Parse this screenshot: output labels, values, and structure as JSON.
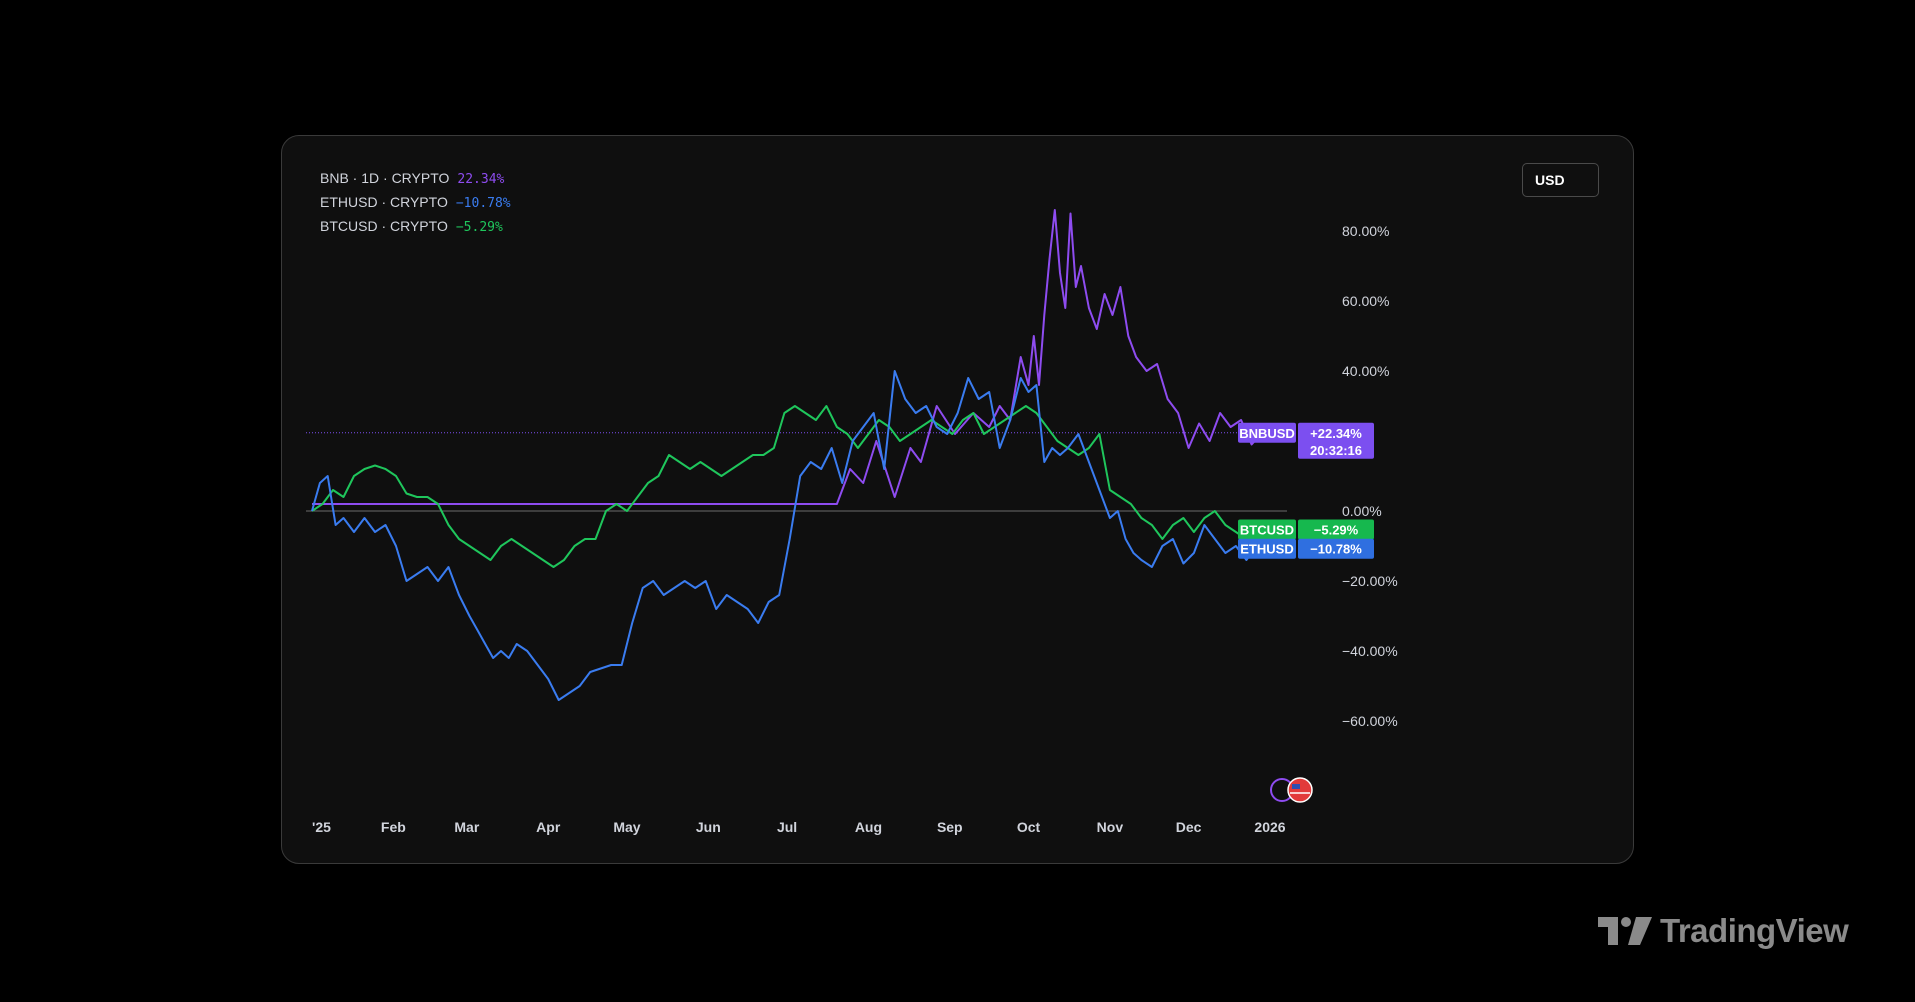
{
  "brand": {
    "name": "TradingView"
  },
  "currency_button": {
    "label": "USD"
  },
  "legend": [
    {
      "label": "BNB · 1D · CRYPTO",
      "value": "22.34%",
      "color": "#8e4cf0"
    },
    {
      "label": "ETHUSD · CRYPTO",
      "value": "−10.78%",
      "color": "#3a7cf0"
    },
    {
      "label": "BTCUSD · CRYPTO",
      "value": "−5.29%",
      "color": "#1fc65c"
    }
  ],
  "price_tags": [
    {
      "name": "BNBUSD",
      "value": "+22.34%",
      "extra": "20:32:16",
      "color": "#7c4ff0",
      "y": 22.34
    },
    {
      "name": "BTCUSD",
      "value": "−5.29%",
      "color": "#16b84e",
      "y": -5.29
    },
    {
      "name": "ETHUSD",
      "value": "−10.78%",
      "color": "#2f6fe0",
      "y": -10.78
    }
  ],
  "chart_data": {
    "type": "line",
    "title": "",
    "xlabel": "",
    "ylabel": "",
    "ylim": [
      -70,
      90
    ],
    "x_ticks": [
      "'25",
      "Feb",
      "Mar",
      "Apr",
      "May",
      "Jun",
      "Jul",
      "Aug",
      "Sep",
      "Oct",
      "Nov",
      "Dec",
      "2026"
    ],
    "x_tick_days": [
      0,
      31,
      59,
      90,
      120,
      151,
      181,
      212,
      243,
      273,
      304,
      334,
      365
    ],
    "y_ticks": [
      {
        "value": 80,
        "label": "80.00%"
      },
      {
        "value": 60,
        "label": "60.00%"
      },
      {
        "value": 40,
        "label": "40.00%"
      },
      {
        "value": 0,
        "label": "0.00%"
      },
      {
        "value": -20,
        "label": "−20.00%"
      },
      {
        "value": -40,
        "label": "−40.00%"
      },
      {
        "value": -60,
        "label": "−60.00%"
      }
    ],
    "zero_line": 0,
    "series": [
      {
        "name": "BNBUSD",
        "color": "#8e4cf0",
        "x": [
          0,
          200,
          205,
          210,
          215,
          222,
          228,
          232,
          238,
          245,
          252,
          258,
          262,
          266,
          270,
          273,
          275,
          277,
          279,
          281,
          283,
          285,
          287,
          289,
          291,
          293,
          296,
          299,
          302,
          305,
          308,
          311,
          314,
          318,
          322,
          326,
          330,
          334,
          338,
          342,
          346,
          350,
          354,
          358,
          362
        ],
        "values": [
          2,
          2,
          12,
          8,
          20,
          4,
          18,
          14,
          30,
          22,
          28,
          24,
          30,
          26,
          44,
          36,
          50,
          36,
          56,
          72,
          86,
          68,
          58,
          85,
          64,
          70,
          58,
          52,
          62,
          56,
          64,
          50,
          44,
          40,
          42,
          32,
          28,
          18,
          25,
          20,
          28,
          24,
          26,
          19,
          22.34
        ]
      },
      {
        "name": "ETHUSD",
        "color": "#3a7cf0",
        "x": [
          0,
          3,
          6,
          9,
          12,
          16,
          20,
          24,
          28,
          32,
          36,
          40,
          44,
          48,
          52,
          56,
          60,
          63,
          66,
          69,
          72,
          75,
          78,
          82,
          86,
          90,
          94,
          98,
          102,
          106,
          110,
          114,
          118,
          122,
          126,
          130,
          134,
          138,
          142,
          146,
          150,
          154,
          158,
          162,
          166,
          170,
          174,
          178,
          182,
          186,
          190,
          194,
          198,
          202,
          206,
          210,
          214,
          218,
          222,
          226,
          230,
          234,
          238,
          242,
          246,
          250,
          254,
          258,
          262,
          266,
          270,
          273,
          276,
          279,
          282,
          285,
          288,
          292,
          296,
          300,
          304,
          307,
          310,
          313,
          316,
          320,
          324,
          328,
          332,
          336,
          340,
          344,
          348,
          352,
          356,
          360,
          363
        ],
        "values": [
          0,
          8,
          10,
          -4,
          -2,
          -6,
          -2,
          -6,
          -4,
          -10,
          -20,
          -18,
          -16,
          -20,
          -16,
          -24,
          -30,
          -34,
          -38,
          -42,
          -40,
          -42,
          -38,
          -40,
          -44,
          -48,
          -54,
          -52,
          -50,
          -46,
          -45,
          -44,
          -44,
          -32,
          -22,
          -20,
          -24,
          -22,
          -20,
          -22,
          -20,
          -28,
          -24,
          -26,
          -28,
          -32,
          -26,
          -24,
          -8,
          10,
          14,
          12,
          18,
          8,
          20,
          24,
          28,
          12,
          40,
          32,
          28,
          30,
          24,
          22,
          28,
          38,
          32,
          34,
          18,
          26,
          38,
          34,
          36,
          14,
          18,
          16,
          18,
          22,
          14,
          6,
          -2,
          0,
          -8,
          -12,
          -14,
          -16,
          -10,
          -8,
          -15,
          -12,
          -4,
          -8,
          -12,
          -10,
          -14,
          -10,
          -10.78
        ]
      },
      {
        "name": "BTCUSD",
        "color": "#1fc65c",
        "x": [
          0,
          4,
          8,
          12,
          16,
          20,
          24,
          28,
          32,
          36,
          40,
          44,
          48,
          52,
          56,
          60,
          64,
          68,
          72,
          76,
          80,
          84,
          88,
          92,
          96,
          100,
          104,
          108,
          112,
          116,
          120,
          124,
          128,
          132,
          136,
          140,
          144,
          148,
          152,
          156,
          160,
          164,
          168,
          172,
          176,
          180,
          184,
          188,
          192,
          196,
          200,
          204,
          208,
          212,
          216,
          220,
          224,
          228,
          232,
          236,
          240,
          244,
          248,
          252,
          256,
          260,
          264,
          268,
          272,
          276,
          280,
          284,
          288,
          292,
          296,
          300,
          304,
          308,
          312,
          316,
          320,
          324,
          328,
          332,
          336,
          340,
          344,
          348,
          352,
          356,
          360,
          363
        ],
        "values": [
          0,
          2,
          6,
          4,
          10,
          12,
          13,
          12,
          10,
          5,
          4,
          4,
          2,
          -4,
          -8,
          -10,
          -12,
          -14,
          -10,
          -8,
          -10,
          -12,
          -14,
          -16,
          -14,
          -10,
          -8,
          -8,
          0,
          2,
          0,
          4,
          8,
          10,
          16,
          14,
          12,
          14,
          12,
          10,
          12,
          14,
          16,
          16,
          18,
          28,
          30,
          28,
          26,
          30,
          24,
          22,
          18,
          22,
          26,
          24,
          20,
          22,
          24,
          26,
          24,
          22,
          26,
          28,
          22,
          24,
          26,
          28,
          30,
          28,
          24,
          20,
          18,
          16,
          18,
          22,
          6,
          4,
          2,
          -2,
          -4,
          -8,
          -4,
          -2,
          -6,
          -2,
          0,
          -4,
          -6,
          -8,
          -4,
          -5.29
        ]
      }
    ]
  }
}
